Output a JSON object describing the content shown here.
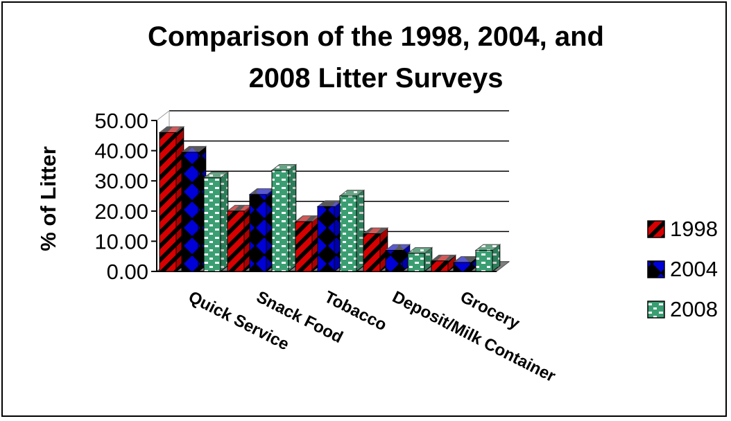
{
  "chart_data": {
    "type": "bar",
    "title": [
      "Comparison of the 1998, 2004, and",
      "2008 Litter Surveys"
    ],
    "ylabel": "% of Litter",
    "xlabel": "",
    "ylim": [
      0,
      50
    ],
    "yticks": [
      "0.00",
      "10.00",
      "20.00",
      "30.00",
      "40.00",
      "50.00"
    ],
    "categories": [
      "Quick Service",
      "Snack Food",
      "Tobacco",
      "Deposit/Milk Container",
      "Grocery"
    ],
    "series": [
      {
        "name": "1998",
        "values": [
          46,
          20,
          16.5,
          12.5,
          3.5
        ],
        "color": "#cc0000",
        "pattern": "diagonal-stripes-black"
      },
      {
        "name": "2004",
        "values": [
          39.5,
          25.5,
          21.5,
          7,
          3
        ],
        "color": "#0000cc",
        "pattern": "diamonds-black"
      },
      {
        "name": "2008",
        "values": [
          31,
          33.5,
          25,
          6,
          7
        ],
        "color": "#3a9e72",
        "pattern": "white-bricks"
      }
    ],
    "grid": true,
    "legend": "right",
    "floor_color": "#808080"
  }
}
